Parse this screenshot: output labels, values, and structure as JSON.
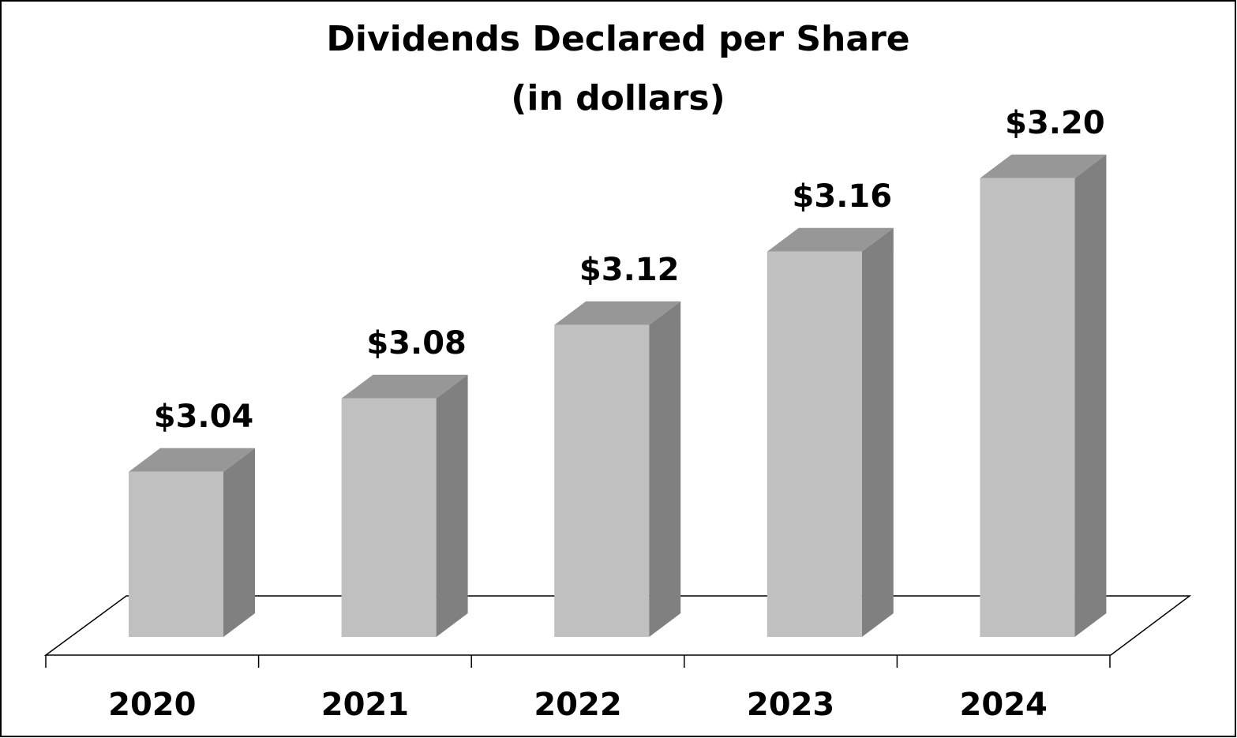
{
  "chart_data": {
    "type": "bar3d",
    "title": "Dividends Declared per Share",
    "subtitle": "(in dollars)",
    "categories": [
      "2020",
      "2021",
      "2022",
      "2023",
      "2024"
    ],
    "values": [
      3.04,
      3.08,
      3.12,
      3.16,
      3.2
    ],
    "value_labels": [
      "$3.04",
      "$3.08",
      "$3.12",
      "$3.16",
      "$3.20"
    ],
    "color": "#c0c0c0",
    "ylim": [
      2.95,
      3.25
    ]
  }
}
